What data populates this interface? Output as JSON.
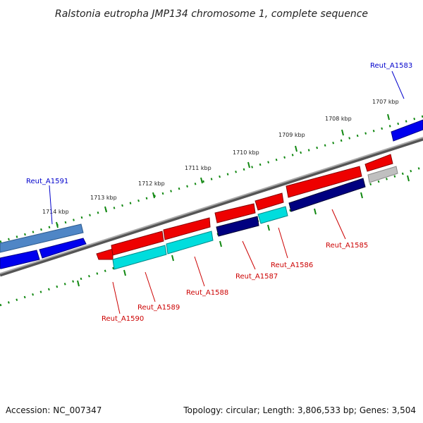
{
  "title": "Ralstonia eutropha JMP134 chromosome 1, complete sequence",
  "footer": {
    "accession": "Accession: NC_007347",
    "summary": "Topology: circular; Length: 3,806,533 bp; Genes: 3,504"
  },
  "colors": {
    "forward_gene": "#0000ee",
    "forward_gene_light": "#4f86c6",
    "reverse_gene": "#ee0000",
    "label_blue": "#0000cc",
    "label_red": "#cc0000",
    "tick_green": "#118811",
    "backbone": "#888888",
    "cyan": "#00dddd",
    "navy": "#000080",
    "grey_gene": "#c0c0c0"
  },
  "ticks": [
    "1714 kbp",
    "1713 kbp",
    "1712 kbp",
    "1711 kbp",
    "1710 kbp",
    "1709 kbp",
    "1708 kbp",
    "1707 kbp"
  ],
  "genes": [
    {
      "name": "Reut_A1591",
      "strand": "forward"
    },
    {
      "name": "Reut_A1583",
      "strand": "forward"
    },
    {
      "name": "Reut_A1590",
      "strand": "reverse"
    },
    {
      "name": "Reut_A1589",
      "strand": "reverse"
    },
    {
      "name": "Reut_A1588",
      "strand": "reverse"
    },
    {
      "name": "Reut_A1587",
      "strand": "reverse"
    },
    {
      "name": "Reut_A1586",
      "strand": "reverse"
    },
    {
      "name": "Reut_A1585",
      "strand": "reverse"
    }
  ]
}
